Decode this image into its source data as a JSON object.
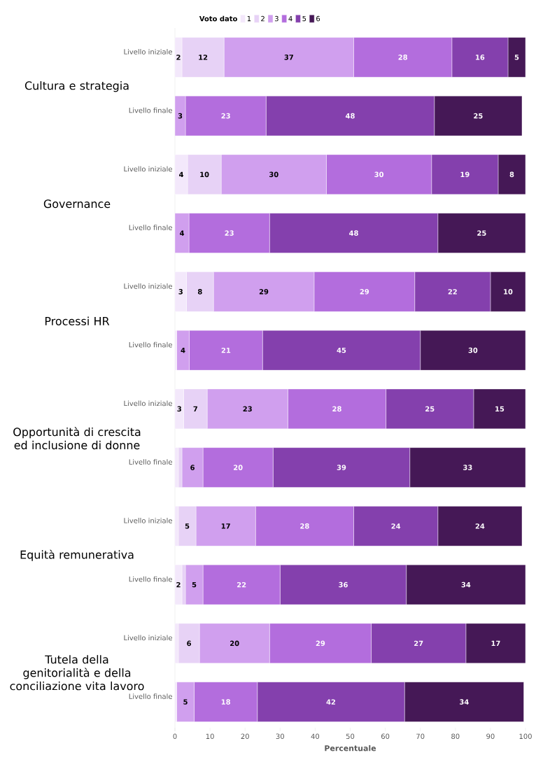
{
  "chart_data": {
    "type": "bar",
    "orientation": "horizontal",
    "stacked": true,
    "categories": [
      "Livello iniziale",
      "Livello finale",
      "Livello iniziale",
      "Livello finale",
      "Livello iniziale",
      "Livello finale",
      "Livello iniziale",
      "Livello finale",
      "Livello iniziale",
      "Livello finale",
      "Livello iniziale",
      "Livello finale"
    ],
    "annotations": [
      "Cultura e strategia",
      "Governance",
      "Processi HR",
      "Opportunità di crescita ed inclusione di donne",
      "Equità remunerativa",
      "Tutela della genitorialità e della conciliazione vita lavoro"
    ],
    "series": [
      {
        "name": "1",
        "color": "#f3e8fb",
        "values": [
          2,
          0,
          3.6,
          0,
          3.3,
          0.5,
          2.5,
          1,
          1,
          2,
          1,
          0.5
        ],
        "value_labels": [
          "2",
          null,
          "4",
          null,
          "3",
          null,
          "3",
          null,
          null,
          "2",
          null,
          null
        ]
      },
      {
        "name": "2",
        "color": "#e7d2f6",
        "values": [
          12,
          0,
          9.6,
          0,
          7.7,
          0,
          6.7,
          1,
          5,
          1,
          6,
          0
        ],
        "value_labels": [
          "12",
          null,
          "10",
          null,
          "8",
          null,
          "7",
          null,
          "5",
          null,
          "6",
          null
        ]
      },
      {
        "name": "3",
        "color": "#d09fee",
        "values": [
          37,
          3,
          30,
          4,
          28.7,
          3.6,
          23,
          6,
          17,
          5,
          20,
          5
        ],
        "value_labels": [
          "37",
          "3",
          "30",
          "4",
          "29",
          "4",
          "23",
          "6",
          "17",
          "5",
          "20",
          "5"
        ]
      },
      {
        "name": "4",
        "color": "#b36ddd",
        "values": [
          28,
          23,
          30,
          23,
          28.7,
          20.9,
          28,
          20,
          28,
          22,
          29,
          18
        ],
        "value_labels": [
          "28",
          "23",
          "30",
          "23",
          "29",
          "21",
          "28",
          "20",
          "28",
          "22",
          "29",
          "18"
        ]
      },
      {
        "name": "5",
        "color": "#8440ad",
        "values": [
          16,
          48,
          19,
          48,
          21.6,
          45,
          25,
          39,
          24,
          36,
          27,
          42
        ],
        "value_labels": [
          "16",
          "48",
          "19",
          "48",
          "22",
          "45",
          "25",
          "39",
          "24",
          "36",
          "27",
          "42"
        ]
      },
      {
        "name": "6",
        "color": "#451856",
        "values": [
          5,
          25,
          7.8,
          25,
          10,
          30,
          14.8,
          33,
          24,
          34,
          17,
          34
        ],
        "value_labels": [
          "5",
          "25",
          "8",
          "25",
          "10",
          "30",
          "15",
          "33",
          "24",
          "34",
          "17",
          "34"
        ]
      }
    ],
    "xlabel": "Percentuale",
    "xlim": [
      0,
      100
    ],
    "xticks": [
      0,
      10,
      20,
      30,
      40,
      50,
      60,
      70,
      80,
      90,
      100
    ],
    "legend": "top",
    "legend_title": "Voto dato"
  }
}
